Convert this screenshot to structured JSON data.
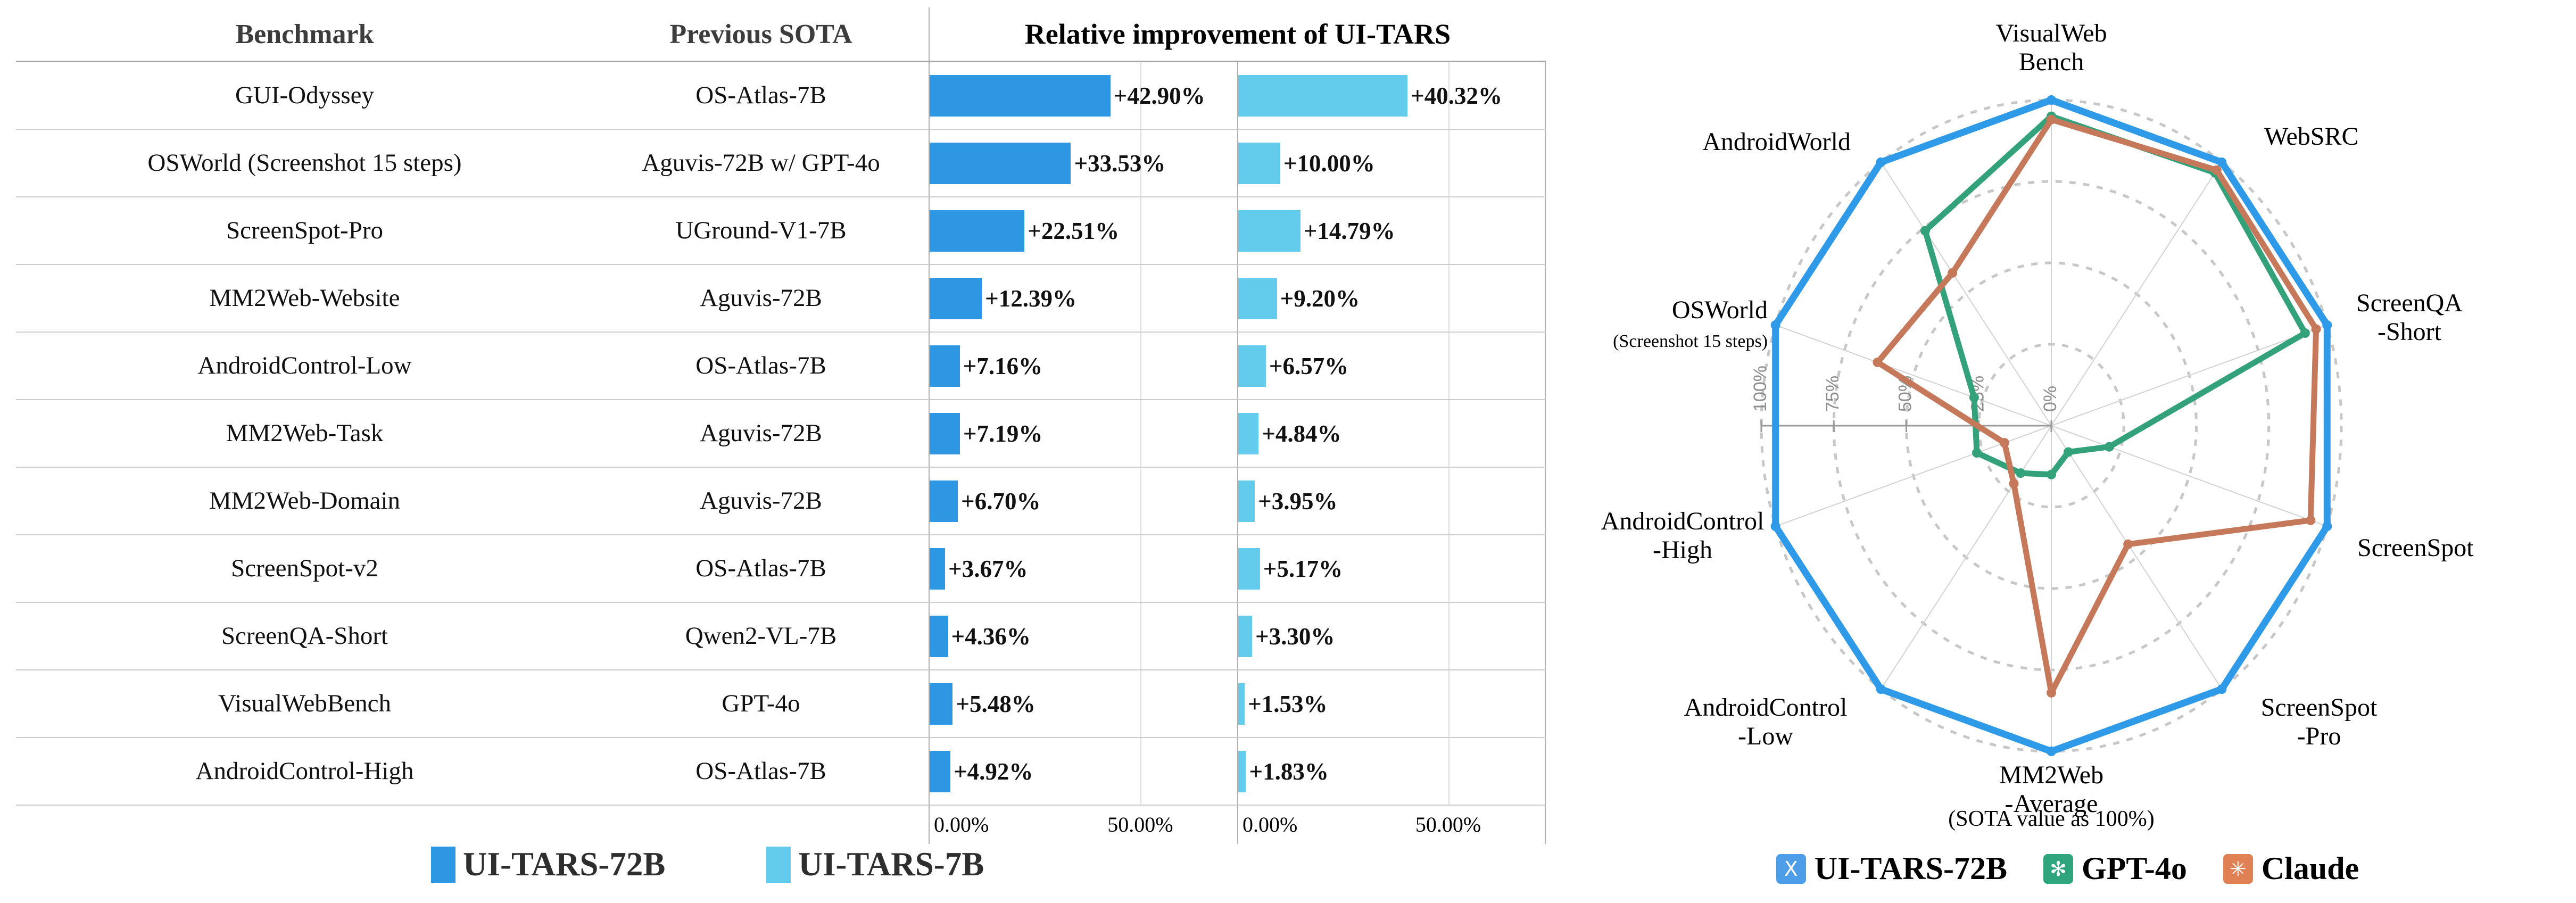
{
  "chart_data": [
    {
      "id": "improvement-table",
      "type": "bar",
      "title": "Relative improvement of UI-TARS",
      "col_headers": [
        "Benchmark",
        "Previous SOTA"
      ],
      "categories": [
        "GUI-Odyssey",
        "OSWorld (Screenshot 15 steps)",
        "ScreenSpot-Pro",
        "MM2Web-Website",
        "AndroidControl-Low",
        "MM2Web-Task",
        "MM2Web-Domain",
        "ScreenSpot-v2",
        "ScreenQA-Short",
        "VisualWebBench",
        "AndroidControl-High"
      ],
      "previous_sota": [
        "OS-Atlas-7B",
        "Aguvis-72B w/ GPT-4o",
        "UGround-V1-7B",
        "Aguvis-72B",
        "OS-Atlas-7B",
        "Aguvis-72B",
        "Aguvis-72B",
        "OS-Atlas-7B",
        "Qwen2-VL-7B",
        "GPT-4o",
        "OS-Atlas-7B"
      ],
      "series": [
        {
          "name": "UI-TARS-72B",
          "color": "#2E97E3",
          "values": [
            42.9,
            33.53,
            22.51,
            12.39,
            7.16,
            7.19,
            6.7,
            3.67,
            4.36,
            5.48,
            4.92
          ],
          "labels": [
            "+42.90%",
            "+33.53%",
            "+22.51%",
            "+12.39%",
            "+7.16%",
            "+7.19%",
            "+6.70%",
            "+3.67%",
            "+4.36%",
            "+5.48%",
            "+4.92%"
          ]
        },
        {
          "name": "UI-TARS-7B",
          "color": "#63CBEB",
          "values": [
            40.32,
            10.0,
            14.79,
            9.2,
            6.57,
            4.84,
            3.95,
            5.17,
            3.3,
            1.53,
            1.83
          ],
          "labels": [
            "+40.32%",
            "+10.00%",
            "+14.79%",
            "+9.20%",
            "+6.57%",
            "+4.84%",
            "+3.95%",
            "+5.17%",
            "+3.30%",
            "+1.53%",
            "+1.83%"
          ]
        }
      ],
      "xlabel": "",
      "ylabel": "",
      "xlim": [
        0,
        73
      ],
      "x_ticks": [
        "0.00%",
        "50.00%"
      ],
      "grid": true,
      "legend_position": "bottom",
      "legend": [
        {
          "label": "UI-TARS-72B",
          "color": "#2E97E3"
        },
        {
          "label": "UI-TARS-7B",
          "color": "#63CBEB"
        }
      ]
    },
    {
      "id": "radar-vs-sota",
      "type": "radar",
      "title": "",
      "caption": "(SOTA value as 100%)",
      "categories": [
        [
          "VisualWeb",
          "Bench"
        ],
        [
          "WebSRC"
        ],
        [
          "ScreenQA",
          "-Short"
        ],
        [
          "ScreenSpot"
        ],
        [
          "ScreenSpot",
          "-Pro"
        ],
        [
          "MM2Web",
          "-Average"
        ],
        [
          "AndroidControl",
          "-Low"
        ],
        [
          "AndroidControl",
          "-High"
        ],
        [
          "OSWorld",
          "(Screenshot 15 steps)"
        ],
        [
          "AndroidWorld"
        ]
      ],
      "rlim": [
        0,
        100
      ],
      "r_ticks": [
        "100%",
        "75%",
        "50%",
        "25%",
        "0%"
      ],
      "series": [
        {
          "name": "UI-TARS-72B",
          "color": "#2F9BE8",
          "values": [
            100,
            100,
            100,
            100,
            100,
            100,
            100,
            100,
            100,
            100
          ]
        },
        {
          "name": "GPT-4o",
          "color": "#33A27B",
          "values": [
            95,
            96,
            92,
            21,
            10,
            15,
            18,
            27,
            28,
            74
          ]
        },
        {
          "name": "Claude",
          "color": "#C6795A",
          "values": [
            94,
            97,
            96,
            94,
            45,
            82,
            22,
            17,
            63,
            58
          ]
        }
      ],
      "legend": [
        {
          "label": "UI-TARS-72B",
          "color": "#4D9DE8",
          "icon": "X"
        },
        {
          "label": "GPT-4o",
          "color": "#2EA57D",
          "icon": "✻"
        },
        {
          "label": "Claude",
          "color": "#E08155",
          "icon": "✳"
        }
      ],
      "grid": true,
      "legend_position": "bottom"
    }
  ]
}
